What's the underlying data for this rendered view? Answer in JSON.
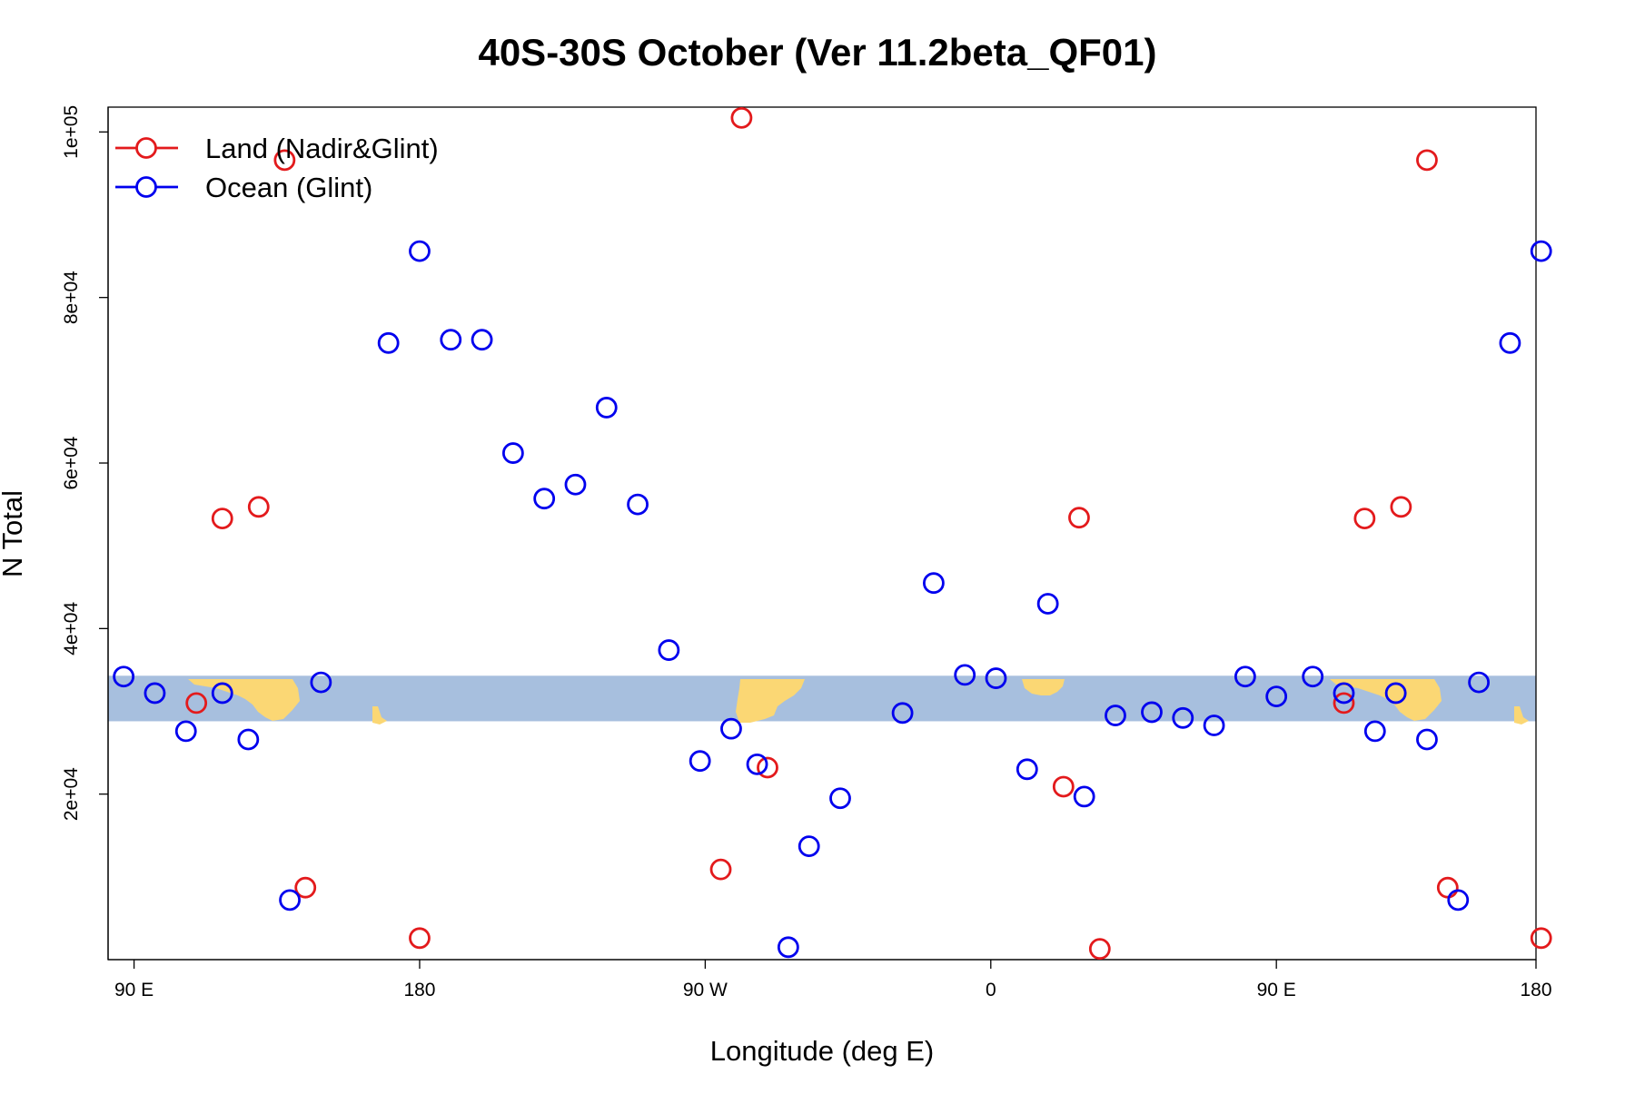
{
  "chart_data": {
    "type": "scatter",
    "title": "40S-30S October (Ver 11.2beta_QF01)",
    "xlabel": "Longitude (deg E)",
    "ylabel": "N Total",
    "xlim": [
      -95,
      180
    ],
    "ylim": [
      0,
      103000
    ],
    "x_ticks": [
      {
        "value": -90,
        "label": "90 E"
      },
      {
        "value": -35,
        "label": "180"
      },
      {
        "value": 20,
        "label": "90 W"
      },
      {
        "value": 75,
        "label": "0"
      },
      {
        "value": 130,
        "label": "90 E"
      },
      {
        "value": 180,
        "label": "180"
      }
    ],
    "y_ticks": [
      {
        "value": 20000,
        "label": "2e+04"
      },
      {
        "value": 40000,
        "label": "4e+04"
      },
      {
        "value": 60000,
        "label": "6e+04"
      },
      {
        "value": 80000,
        "label": "8e+04"
      },
      {
        "value": 100000,
        "label": "1e+05"
      }
    ],
    "grid": false,
    "legend_position": "top-left",
    "map_strip": {
      "y_range": [
        28800,
        34300
      ],
      "ocean_color": "#a7bfde",
      "land_color": "#fbd774"
    },
    "series": [
      {
        "name": "Land (Nadir&Glint)",
        "color": "#e31a1c",
        "marker": "open-circle",
        "points": [
          [
            -78,
            31000
          ],
          [
            -73,
            53300
          ],
          [
            -66,
            54700
          ],
          [
            -61,
            96600
          ],
          [
            -57,
            8700
          ],
          [
            -35,
            2600
          ],
          [
            27,
            101700
          ],
          [
            23,
            10900
          ],
          [
            32,
            23200
          ],
          [
            89,
            20900
          ],
          [
            92,
            53400
          ],
          [
            96,
            1300
          ],
          [
            143,
            31000
          ],
          [
            147,
            53300
          ],
          [
            154,
            54700
          ],
          [
            159,
            96600
          ],
          [
            163,
            8700
          ],
          [
            181,
            2600
          ]
        ]
      },
      {
        "name": "Ocean (Glint)",
        "color": "#0000ee",
        "marker": "open-circle",
        "points": [
          [
            -92,
            34200
          ],
          [
            -86,
            32200
          ],
          [
            -80,
            27600
          ],
          [
            -73,
            32200
          ],
          [
            -68,
            26600
          ],
          [
            -60,
            7200
          ],
          [
            -54,
            33500
          ],
          [
            -41,
            74500
          ],
          [
            -35,
            85600
          ],
          [
            -29,
            74900
          ],
          [
            -23,
            74900
          ],
          [
            -17,
            61200
          ],
          [
            -11,
            55700
          ],
          [
            -5,
            57400
          ],
          [
            1,
            66700
          ],
          [
            7,
            55000
          ],
          [
            13,
            37400
          ],
          [
            19,
            24000
          ],
          [
            25,
            27900
          ],
          [
            30,
            23600
          ],
          [
            36,
            1500
          ],
          [
            40,
            13700
          ],
          [
            46,
            19500
          ],
          [
            58,
            29800
          ],
          [
            64,
            45500
          ],
          [
            70,
            34400
          ],
          [
            76,
            34000
          ],
          [
            82,
            23000
          ],
          [
            86,
            43000
          ],
          [
            93,
            19700
          ],
          [
            99,
            29500
          ],
          [
            106,
            29900
          ],
          [
            112,
            29200
          ],
          [
            118,
            28300
          ],
          [
            124,
            34200
          ],
          [
            130,
            31800
          ],
          [
            137,
            34200
          ],
          [
            143,
            32200
          ],
          [
            149,
            27600
          ],
          [
            153,
            32200
          ],
          [
            159,
            26600
          ],
          [
            165,
            7200
          ],
          [
            169,
            33500
          ],
          [
            175,
            74500
          ],
          [
            181,
            85600
          ]
        ]
      }
    ]
  },
  "colors": {
    "land": "#e31a1c",
    "ocean": "#0000ee",
    "map_ocean": "#a7bfde",
    "map_land": "#fbd774"
  }
}
